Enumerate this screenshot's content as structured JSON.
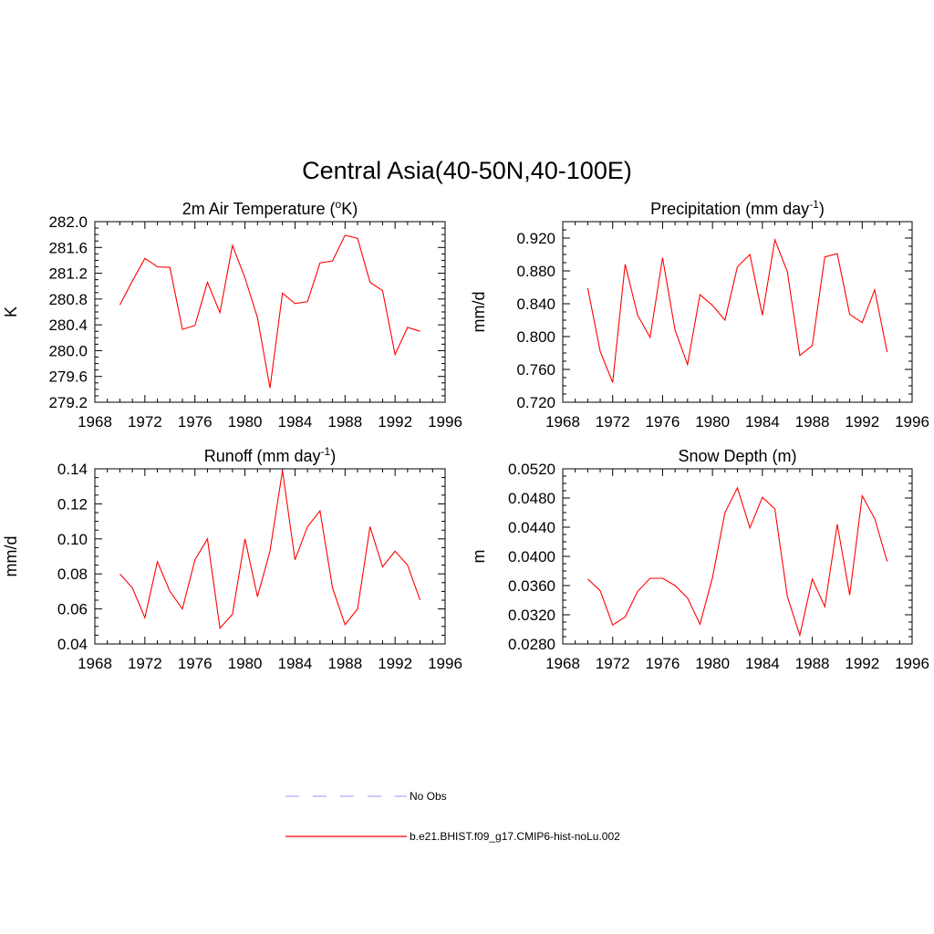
{
  "figure": {
    "title": "Central Asia(40-50N,40-100E)"
  },
  "chart_data": [
    {
      "type": "line",
      "title": "2m Air Temperature (",
      "title_sup": "o",
      "title_after": "K)",
      "ylabel": "K",
      "xlabel": "",
      "xlim": [
        1968,
        1996
      ],
      "ylim": [
        279.2,
        282.0
      ],
      "x_ticks": [
        "1968",
        "1972",
        "1976",
        "1980",
        "1984",
        "1988",
        "1992",
        "1996"
      ],
      "y_ticks": [
        "279.2",
        "279.6",
        "280.0",
        "280.4",
        "280.8",
        "281.2",
        "281.6",
        "282.0"
      ],
      "x": [
        1970,
        1971,
        1972,
        1973,
        1974,
        1975,
        1976,
        1977,
        1978,
        1979,
        1980,
        1981,
        1982,
        1983,
        1984,
        1985,
        1986,
        1987,
        1988,
        1989,
        1990,
        1991,
        1992,
        1993,
        1994
      ],
      "series": [
        {
          "name": "b.e21.BHIST.f09_g17.CMIP6-hist-noLu.002",
          "values": [
            280.71,
            281.08,
            281.43,
            281.3,
            281.29,
            280.33,
            280.39,
            281.06,
            280.59,
            281.63,
            281.13,
            280.51,
            279.42,
            280.89,
            280.73,
            280.76,
            281.36,
            281.39,
            281.79,
            281.74,
            281.06,
            280.93,
            279.94,
            280.36,
            280.3
          ]
        }
      ]
    },
    {
      "type": "line",
      "title": "Precipitation (mm day",
      "title_sup": "-1",
      "title_after": ")",
      "ylabel": "mm/d",
      "xlabel": "",
      "xlim": [
        1968,
        1996
      ],
      "ylim": [
        0.72,
        0.94
      ],
      "x_ticks": [
        "1968",
        "1972",
        "1976",
        "1980",
        "1984",
        "1988",
        "1992",
        "1996"
      ],
      "y_ticks": [
        "0.720",
        "0.760",
        "0.800",
        "0.840",
        "0.880",
        "0.920"
      ],
      "x": [
        1970,
        1971,
        1972,
        1973,
        1974,
        1975,
        1976,
        1977,
        1978,
        1979,
        1980,
        1981,
        1982,
        1983,
        1984,
        1985,
        1986,
        1987,
        1988,
        1989,
        1990,
        1991,
        1992,
        1993,
        1994
      ],
      "series": [
        {
          "name": "b.e21.BHIST.f09_g17.CMIP6-hist-noLu.002",
          "values": [
            0.859,
            0.782,
            0.744,
            0.888,
            0.826,
            0.799,
            0.896,
            0.808,
            0.766,
            0.851,
            0.838,
            0.82,
            0.885,
            0.9,
            0.826,
            0.918,
            0.879,
            0.777,
            0.789,
            0.897,
            0.901,
            0.827,
            0.817,
            0.857,
            0.781
          ]
        }
      ]
    },
    {
      "type": "line",
      "title": "Runoff (mm day",
      "title_sup": "-1",
      "title_after": ")",
      "ylabel": "mm/d",
      "xlabel": "",
      "xlim": [
        1968,
        1996
      ],
      "ylim": [
        0.04,
        0.14
      ],
      "x_ticks": [
        "1968",
        "1972",
        "1976",
        "1980",
        "1984",
        "1988",
        "1992",
        "1996"
      ],
      "y_ticks": [
        "0.04",
        "0.06",
        "0.08",
        "0.10",
        "0.12",
        "0.14"
      ],
      "x": [
        1970,
        1971,
        1972,
        1973,
        1974,
        1975,
        1976,
        1977,
        1978,
        1979,
        1980,
        1981,
        1982,
        1983,
        1984,
        1985,
        1986,
        1987,
        1988,
        1989,
        1990,
        1991,
        1992,
        1993,
        1994
      ],
      "series": [
        {
          "name": "b.e21.BHIST.f09_g17.CMIP6-hist-noLu.002",
          "values": [
            0.08,
            0.072,
            0.055,
            0.087,
            0.07,
            0.06,
            0.088,
            0.1,
            0.049,
            0.057,
            0.1,
            0.067,
            0.093,
            0.139,
            0.088,
            0.107,
            0.116,
            0.072,
            0.051,
            0.06,
            0.107,
            0.084,
            0.093,
            0.085,
            0.065
          ]
        }
      ]
    },
    {
      "type": "line",
      "title": "Snow Depth (m)",
      "title_sup": "",
      "title_after": "",
      "ylabel": "m",
      "xlabel": "",
      "xlim": [
        1968,
        1996
      ],
      "ylim": [
        0.028,
        0.052
      ],
      "x_ticks": [
        "1968",
        "1972",
        "1976",
        "1980",
        "1984",
        "1988",
        "1992",
        "1996"
      ],
      "y_ticks": [
        "0.0280",
        "0.0320",
        "0.0360",
        "0.0400",
        "0.0440",
        "0.0480",
        "0.0520"
      ],
      "x": [
        1970,
        1971,
        1972,
        1973,
        1974,
        1975,
        1976,
        1977,
        1978,
        1979,
        1980,
        1981,
        1982,
        1983,
        1984,
        1985,
        1986,
        1987,
        1988,
        1989,
        1990,
        1991,
        1992,
        1993,
        1994
      ],
      "series": [
        {
          "name": "b.e21.BHIST.f09_g17.CMIP6-hist-noLu.002",
          "values": [
            0.0369,
            0.0353,
            0.0306,
            0.0317,
            0.0352,
            0.037,
            0.037,
            0.036,
            0.0343,
            0.0307,
            0.0371,
            0.046,
            0.0494,
            0.0439,
            0.0481,
            0.0465,
            0.0345,
            0.0292,
            0.0369,
            0.0331,
            0.0444,
            0.0347,
            0.0483,
            0.0452,
            0.0393
          ]
        }
      ]
    }
  ],
  "legend": {
    "items": [
      {
        "label": "No Obs",
        "color": "#aaaaff",
        "style": "dashed"
      },
      {
        "label": "b.e21.BHIST.f09_g17.CMIP6-hist-noLu.002",
        "color": "#ff0000",
        "style": "solid"
      }
    ]
  },
  "colors": {
    "series": "#ff0000",
    "obs": "#aaaaff"
  }
}
